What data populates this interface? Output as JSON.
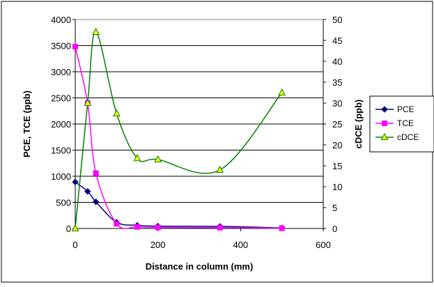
{
  "chart_data": {
    "type": "line",
    "xlabel": "Distance in column (mm)",
    "ylabel_left": "PCE, TCE (ppb)",
    "ylabel_right": "cDCE (ppb)",
    "xlim": [
      0,
      600
    ],
    "ylim_left": [
      0,
      4000
    ],
    "ylim_right": [
      0,
      50
    ],
    "x_ticks": [
      "0",
      "200",
      "400",
      "600"
    ],
    "y_ticks_left": [
      "0",
      "500",
      "1000",
      "1500",
      "2000",
      "2500",
      "3000",
      "3500",
      "4000"
    ],
    "y_ticks_right": [
      "0",
      "5",
      "10",
      "15",
      "20",
      "25",
      "30",
      "35",
      "40",
      "45",
      "50"
    ],
    "grid": "horizontal",
    "legend_position": "right",
    "series": [
      {
        "name": "PCE",
        "axis": "left",
        "color": "#000080",
        "marker": "diamond",
        "x": [
          0,
          30,
          50,
          100,
          150,
          200,
          350,
          500
        ],
        "y": [
          890,
          710,
          510,
          120,
          60,
          45,
          40,
          10
        ]
      },
      {
        "name": "TCE",
        "axis": "left",
        "color": "#ff00ff",
        "marker": "square",
        "x": [
          0,
          30,
          50,
          100,
          150,
          200,
          350,
          500
        ],
        "y": [
          3480,
          2400,
          1060,
          90,
          30,
          20,
          15,
          5
        ]
      },
      {
        "name": "cDCE",
        "axis": "right",
        "color": "#008000",
        "marker": "triangle",
        "marker_fill": "#ffff00",
        "x": [
          0,
          30,
          50,
          100,
          150,
          200,
          350,
          500
        ],
        "y": [
          0,
          30,
          47,
          27.5,
          16.8,
          16.5,
          14,
          32.5
        ]
      }
    ]
  }
}
